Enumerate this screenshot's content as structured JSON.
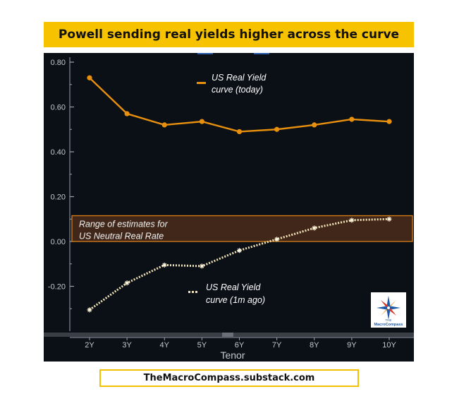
{
  "banner": {
    "title": "Powell sending real yields higher across the curve"
  },
  "footer": {
    "text": "TheMacroCompass.substack.com"
  },
  "colors": {
    "today": "#e8900e",
    "month_ago": "#f0e2b6",
    "band_fill": "#4a2c1a",
    "band_border": "#d97f1a",
    "banner": "#f7c200"
  },
  "chart_data": {
    "type": "line",
    "categories": [
      "2Y",
      "3Y",
      "4Y",
      "5Y",
      "6Y",
      "7Y",
      "8Y",
      "9Y",
      "10Y"
    ],
    "xlabel": "Tenor",
    "ylabel": "",
    "ylim": [
      -0.4,
      0.82
    ],
    "yticks": [
      0.8,
      0.6,
      0.4,
      0.2,
      0.0,
      -0.2
    ],
    "ytick_labels": [
      "0.80",
      "0.60",
      "0.40",
      "0.20",
      "0.00",
      "-0.20"
    ],
    "series": [
      {
        "name": "US Real Yield curve (today)",
        "values": [
          0.73,
          0.57,
          0.52,
          0.535,
          0.49,
          0.5,
          0.52,
          0.545,
          0.535
        ]
      },
      {
        "name": "US Real Yield curve (1m ago)",
        "values": [
          -0.305,
          -0.185,
          -0.105,
          -0.11,
          -0.04,
          0.01,
          0.06,
          0.095,
          0.1
        ]
      }
    ],
    "band": {
      "y0": 0.0,
      "y1": 0.115,
      "label_line1": "Range of estimates for",
      "label_line2": "US Neutral Real Rate"
    },
    "legend": [
      {
        "line1": "US Real Yield",
        "line2": "curve (today)"
      },
      {
        "line1": "US Real Yield",
        "line2": "curve (1m ago)"
      }
    ],
    "logo": {
      "small_text": "THE",
      "brand_text": "MacroCompass"
    }
  }
}
